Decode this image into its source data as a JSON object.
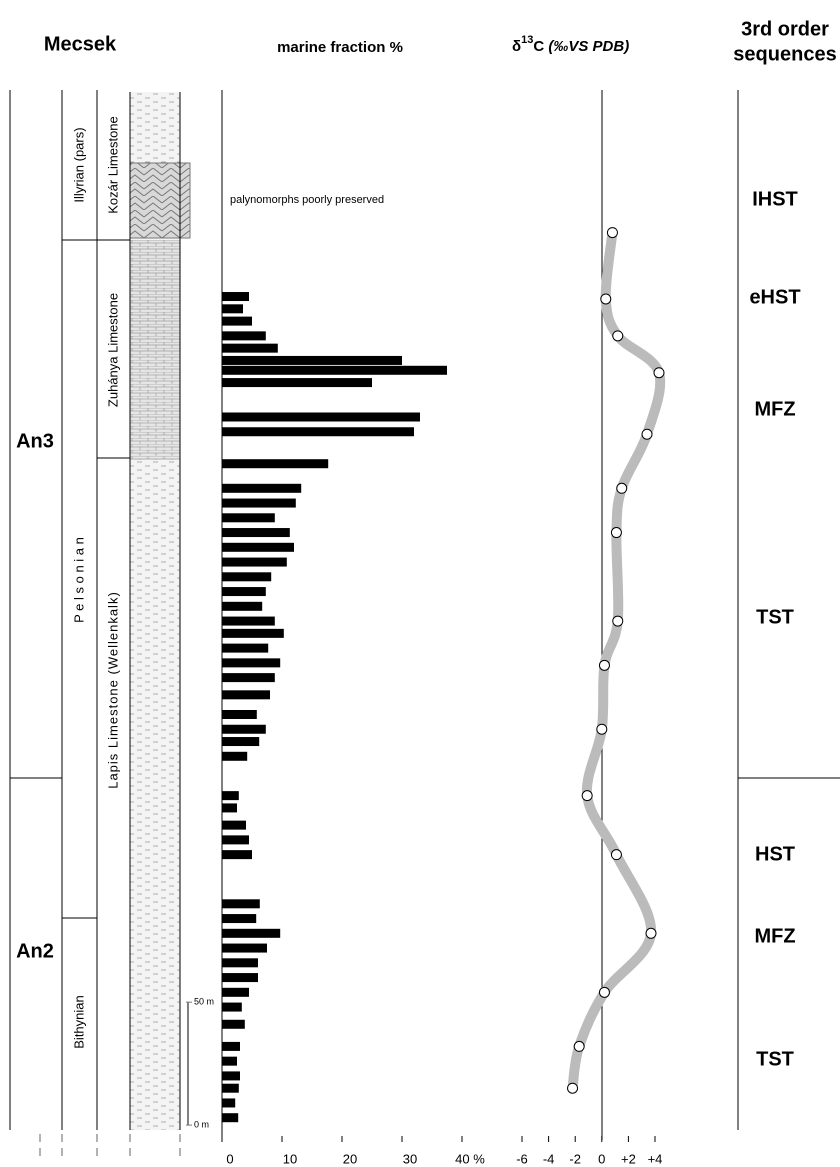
{
  "header": {
    "title": "Mecsek"
  },
  "stratigraphy": {
    "stages": [
      "An3",
      "An2"
    ],
    "substages": [
      "Illyrian (pars)",
      "P e l s o n i a n",
      "Bithynian"
    ],
    "formations": [
      "Kozár Limestone",
      "Zuhánya Limestone",
      "Lapis Limestone (Wellenkalk)"
    ]
  },
  "sequences": {
    "title": [
      "3rd order",
      "sequences"
    ],
    "labels": [
      "IHST",
      "eHST",
      "MFZ",
      "TST",
      "HST",
      "MFZ",
      "TST"
    ]
  },
  "chart_data": [
    {
      "type": "bar",
      "title": "marine fraction %",
      "annotation": "palynomorphs poorly preserved",
      "color": "#000000",
      "y": [
        337,
        332,
        327,
        321,
        316,
        311,
        307,
        302,
        288,
        282,
        269,
        259,
        253,
        247,
        241,
        235,
        229,
        223,
        217,
        211,
        205,
        200,
        194,
        188,
        182,
        175,
        167,
        161,
        156,
        150,
        134,
        129,
        122,
        116,
        110,
        90,
        84,
        78,
        72,
        66,
        60,
        54,
        48,
        41,
        32,
        26,
        20,
        15,
        9,
        3
      ],
      "values": [
        4.5,
        3.5,
        5,
        7.3,
        9.3,
        30,
        37.5,
        25,
        33,
        32,
        17.7,
        13.2,
        12.3,
        8.8,
        11.3,
        12,
        10.8,
        8.2,
        7.3,
        6.7,
        8.8,
        10.3,
        7.7,
        9.7,
        8.8,
        8,
        5.8,
        7.3,
        6.2,
        4.2,
        2.8,
        2.5,
        4,
        4.5,
        5,
        6.3,
        5.7,
        9.7,
        7.5,
        6,
        6,
        4.5,
        3.3,
        3.8,
        3,
        2.5,
        3,
        2.8,
        2.2,
        2.7
      ],
      "xlim": [
        0,
        40
      ],
      "xticks": [
        0,
        10,
        20,
        30,
        {
          "value": 40,
          "label": "40 %"
        }
      ],
      "ylim": [
        -2,
        421
      ],
      "yticks": [
        {
          "value": 0,
          "label": "0 m"
        },
        {
          "value": 50,
          "label": "50 m"
        }
      ]
    },
    {
      "type": "scatter",
      "title": [
        "δ",
        "13",
        "C"
      ],
      "unit": "(‰VS PDB)",
      "color": "#bbbbbb",
      "trend": true,
      "x": [
        0.8,
        0.3,
        1.2,
        4.3,
        3.4,
        1.5,
        1.1,
        1.2,
        0.2,
        0,
        -1.1,
        1.1,
        3.7,
        0.2,
        -1.7,
        -2.2
      ],
      "y": [
        363,
        336,
        321,
        306,
        281,
        259,
        241,
        205,
        187,
        161,
        134,
        110,
        78,
        54,
        32,
        15
      ],
      "xlim": [
        -6,
        4
      ],
      "xticks": [
        -6,
        -4,
        -2,
        0,
        {
          "value": 2,
          "label": "+2"
        },
        {
          "value": 4,
          "label": "+4"
        }
      ],
      "ylim": [
        -2,
        421
      ]
    }
  ]
}
